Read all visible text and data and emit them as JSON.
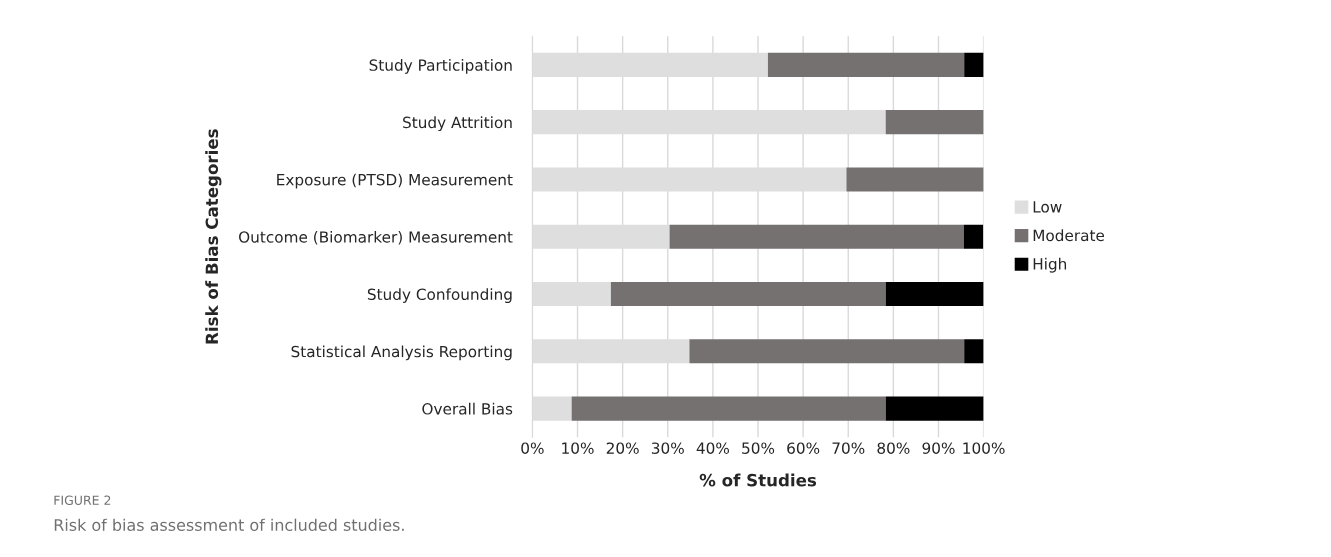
{
  "chart_data": {
    "type": "bar",
    "orientation": "horizontal",
    "stacked": true,
    "xlabel": "% of Studies",
    "ylabel": "Risk of Bias Categories",
    "categories": [
      "Study Participation",
      "Study Attrition",
      "Exposure (PTSD) Measurement",
      "Outcome (Biomarker) Measurement",
      "Study Confounding",
      "Statistical Analysis Reporting",
      "Overall Bias"
    ],
    "series": [
      {
        "name": "Low",
        "color": "#dedede",
        "values": [
          52.2,
          78.3,
          69.6,
          30.4,
          17.4,
          34.8,
          8.7
        ]
      },
      {
        "name": "Moderate",
        "color": "#767171",
        "values": [
          43.5,
          21.7,
          30.4,
          65.2,
          60.9,
          60.9,
          69.6
        ]
      },
      {
        "name": "High",
        "color": "#000000",
        "values": [
          4.3,
          null,
          null,
          4.3,
          21.7,
          4.3,
          21.7
        ]
      }
    ],
    "xlim": [
      0,
      100
    ],
    "xticks": [
      {
        "value": 0,
        "label": "0%"
      },
      {
        "value": 10,
        "label": "10%"
      },
      {
        "value": 20,
        "label": "20%"
      },
      {
        "value": 30,
        "label": "30%"
      },
      {
        "value": 40,
        "label": "40%"
      },
      {
        "value": 50,
        "label": "50%"
      },
      {
        "value": 60,
        "label": "60%"
      },
      {
        "value": 70,
        "label": "70%"
      },
      {
        "value": 80,
        "label": "80%"
      },
      {
        "value": 90,
        "label": "90%"
      },
      {
        "value": 100,
        "label": "100%"
      }
    ],
    "grid": "x",
    "legend": "right",
    "annotations": [
      "FIGURE 2",
      "Risk of bias assessment of included studies."
    ]
  }
}
